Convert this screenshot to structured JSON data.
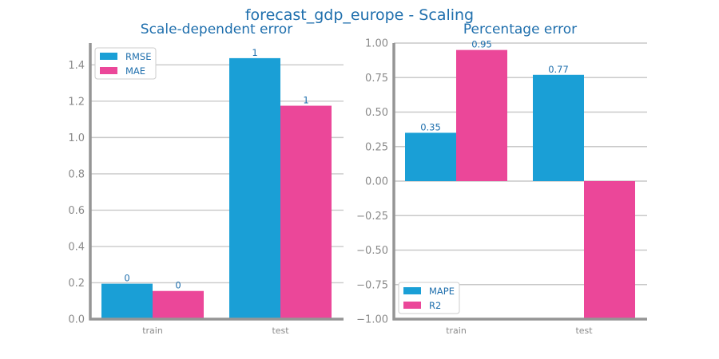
{
  "title": "forecast_gdp_europe - Scaling",
  "colors": {
    "series1": "#1a9fd6",
    "series2": "#eb4799",
    "text": "#1f6fad",
    "ticks": "#8a8a8a",
    "grid": "#c9c9c9",
    "spine": "#959595"
  },
  "chart_data": [
    {
      "type": "bar",
      "title": "Scale-dependent error",
      "categories": [
        "train",
        "test"
      ],
      "series": [
        {
          "name": "RMSE",
          "values": [
            0.195,
            1.437
          ],
          "labels": [
            "0",
            "1"
          ]
        },
        {
          "name": "MAE",
          "values": [
            0.155,
            1.175
          ],
          "labels": [
            "0",
            "1"
          ]
        }
      ],
      "ylim": [
        0,
        1.52
      ],
      "yticks": [
        0.0,
        0.2,
        0.4,
        0.6,
        0.8,
        1.0,
        1.2,
        1.4
      ],
      "ytick_labels": [
        "0.0",
        "0.2",
        "0.4",
        "0.6",
        "0.8",
        "1.0",
        "1.2",
        "1.4"
      ],
      "grid": true,
      "legend": "top-left"
    },
    {
      "type": "bar",
      "title": "Percentage error",
      "categories": [
        "train",
        "test"
      ],
      "series": [
        {
          "name": "MAPE",
          "values": [
            0.35,
            0.77
          ],
          "labels": [
            "0.35",
            "0.77"
          ]
        },
        {
          "name": "R2",
          "values": [
            0.95,
            -1.0
          ],
          "labels": [
            "0.95",
            ""
          ]
        }
      ],
      "ylim": [
        -1.0,
        1.0
      ],
      "yticks": [
        -1.0,
        -0.75,
        -0.5,
        -0.25,
        0.0,
        0.25,
        0.5,
        0.75,
        1.0
      ],
      "ytick_labels": [
        "−1.00",
        "−0.75",
        "−0.50",
        "−0.25",
        "0.00",
        "0.25",
        "0.50",
        "0.75",
        "1.00"
      ],
      "grid": true,
      "legend": "bottom-left"
    }
  ]
}
